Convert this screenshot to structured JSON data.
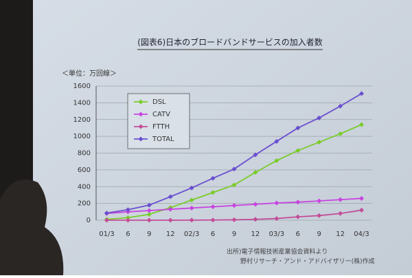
{
  "chart_data": {
    "type": "line",
    "title": "(図表6)日本のブロードバンドサービスの加入者数",
    "unit_label": "＜単位：万回線＞",
    "source_lines": [
      "出所)電子情報技術産業協会資料より",
      "野村リサーチ・アンド・アドバイザリー(株)作成"
    ],
    "categories": [
      "01/3",
      "6",
      "9",
      "12",
      "02/3",
      "6",
      "9",
      "12",
      "03/3",
      "6",
      "9",
      "12",
      "04/3"
    ],
    "series": [
      {
        "name": "DSL",
        "color": "#7acc2a",
        "values": [
          10,
          30,
          70,
          150,
          240,
          330,
          420,
          570,
          710,
          830,
          930,
          1030,
          1140
        ]
      },
      {
        "name": "CATV",
        "color": "#c844e0",
        "values": [
          80,
          100,
          115,
          130,
          145,
          160,
          175,
          190,
          205,
          215,
          230,
          245,
          260
        ]
      },
      {
        "name": "FTTH",
        "color": "#c24d98",
        "values": [
          0,
          0,
          0,
          0,
          1,
          2,
          5,
          10,
          20,
          40,
          55,
          80,
          120
        ]
      },
      {
        "name": "TOTAL",
        "color": "#6a4fd0",
        "values": [
          85,
          125,
          180,
          280,
          385,
          500,
          610,
          780,
          940,
          1100,
          1220,
          1360,
          1510
        ]
      }
    ],
    "ylim": [
      0,
      1600
    ],
    "yticks": [
      0,
      200,
      400,
      600,
      800,
      1000,
      1200,
      1400,
      1600
    ],
    "grid": true
  }
}
